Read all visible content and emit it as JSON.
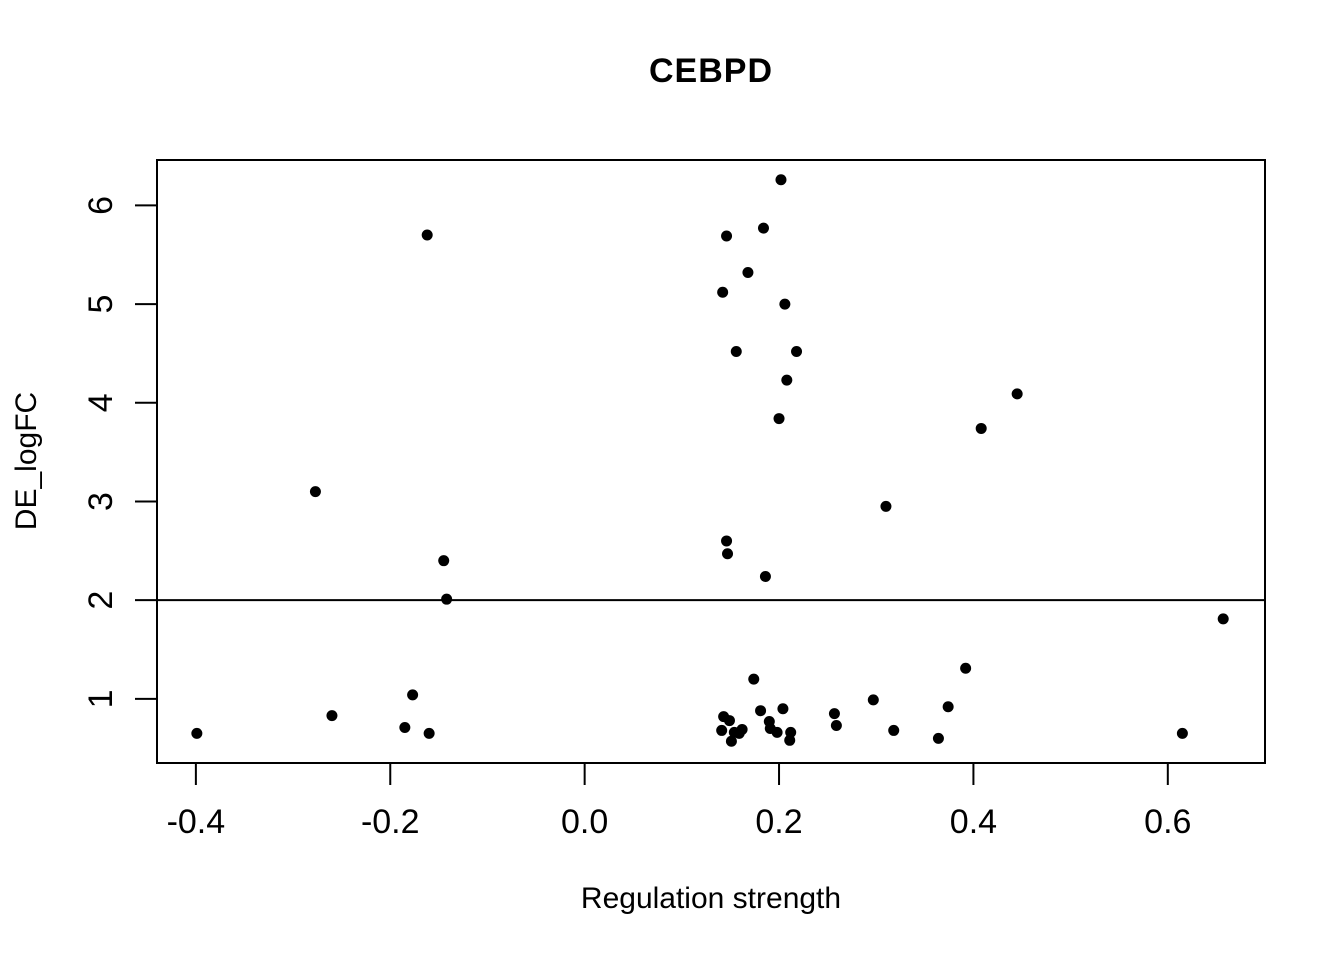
{
  "title": "CEBPD",
  "chart_data": {
    "type": "scatter",
    "title": "CEBPD",
    "xlabel": "Regulation strength",
    "ylabel": "DE_logFC",
    "x_tick_labels": [
      "-0.4",
      "-0.2",
      "0.0",
      "0.2",
      "0.4",
      "0.6"
    ],
    "x_tick_values": [
      -0.4,
      -0.2,
      0.0,
      0.2,
      0.4,
      0.6
    ],
    "y_tick_labels": [
      "1",
      "2",
      "3",
      "4",
      "5",
      "6"
    ],
    "y_tick_values": [
      1,
      2,
      3,
      4,
      5,
      6
    ],
    "xlim": [
      -0.44,
      0.7
    ],
    "ylim": [
      0.35,
      6.46
    ],
    "hline_y": 2,
    "grid": false,
    "legend": null,
    "point_color": "#000000",
    "frame_color": "#000000",
    "background_color": "#ffffff",
    "points": [
      [
        0.202,
        6.26
      ],
      [
        0.184,
        5.77
      ],
      [
        0.146,
        5.69
      ],
      [
        -0.162,
        5.7
      ],
      [
        0.168,
        5.32
      ],
      [
        0.142,
        5.12
      ],
      [
        0.206,
        5.0
      ],
      [
        0.156,
        4.52
      ],
      [
        0.218,
        4.52
      ],
      [
        0.208,
        4.23
      ],
      [
        0.445,
        4.09
      ],
      [
        0.2,
        3.84
      ],
      [
        0.408,
        3.74
      ],
      [
        -0.277,
        3.1
      ],
      [
        0.31,
        2.95
      ],
      [
        0.146,
        2.6
      ],
      [
        0.147,
        2.47
      ],
      [
        0.186,
        2.24
      ],
      [
        -0.145,
        2.4
      ],
      [
        -0.142,
        2.01
      ],
      [
        0.657,
        1.81
      ],
      [
        0.392,
        1.31
      ],
      [
        0.174,
        1.2
      ],
      [
        -0.177,
        1.04
      ],
      [
        0.297,
        0.99
      ],
      [
        0.374,
        0.92
      ],
      [
        0.204,
        0.9
      ],
      [
        0.181,
        0.88
      ],
      [
        0.257,
        0.85
      ],
      [
        -0.26,
        0.83
      ],
      [
        0.143,
        0.82
      ],
      [
        0.149,
        0.78
      ],
      [
        0.19,
        0.77
      ],
      [
        0.259,
        0.73
      ],
      [
        -0.185,
        0.71
      ],
      [
        0.191,
        0.7
      ],
      [
        0.162,
        0.69
      ],
      [
        0.141,
        0.68
      ],
      [
        0.318,
        0.68
      ],
      [
        0.212,
        0.66
      ],
      [
        0.154,
        0.66
      ],
      [
        -0.399,
        0.65
      ],
      [
        -0.16,
        0.65
      ],
      [
        0.159,
        0.65
      ],
      [
        0.615,
        0.65
      ],
      [
        0.198,
        0.66
      ],
      [
        0.211,
        0.58
      ],
      [
        0.364,
        0.6
      ],
      [
        0.151,
        0.57
      ]
    ]
  }
}
